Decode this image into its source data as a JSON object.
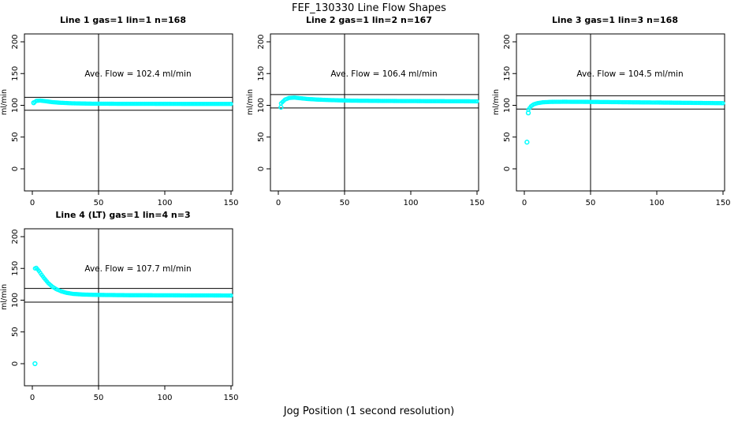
{
  "title": "FEF_130330  Line Flow Shapes",
  "xlabel": "Jog Position (1 second resolution)",
  "chart_data": {
    "type": "scatter",
    "ylabel": "ml/min",
    "x_ticks": [
      0,
      50,
      100,
      150
    ],
    "y_ticks": [
      0,
      50,
      100,
      150,
      200
    ],
    "xlim": [
      0,
      150
    ],
    "ylim": [
      0,
      200
    ],
    "point_color": "#00FFFF",
    "line_color": "#000000",
    "grid": false,
    "panels": [
      {
        "title": "Line 1 gas=1 lin=1 n=168",
        "annotation": "Ave. Flow =  102.4  ml/min",
        "ave_flow": 102.4,
        "ref_lines": [
          112.6,
          92.2
        ],
        "vline_x": 50,
        "curve": [
          [
            1,
            104
          ],
          [
            3,
            107
          ],
          [
            6,
            107.5
          ],
          [
            10,
            106.5
          ],
          [
            15,
            105
          ],
          [
            20,
            104.2
          ],
          [
            30,
            103.2
          ],
          [
            45,
            102.6
          ],
          [
            70,
            102.4
          ],
          [
            110,
            102.3
          ],
          [
            150,
            102.2
          ]
        ],
        "outliers": [
          [
            1,
            104
          ]
        ]
      },
      {
        "title": "Line 2 gas=1 lin=2 n=167",
        "annotation": "Ave. Flow =  106.4  ml/min",
        "ave_flow": 106.4,
        "ref_lines": [
          117.0,
          95.8
        ],
        "vline_x": 50,
        "curve": [
          [
            2,
            103
          ],
          [
            5,
            109
          ],
          [
            8,
            111.5
          ],
          [
            12,
            112.2
          ],
          [
            16,
            111.3
          ],
          [
            22,
            110
          ],
          [
            30,
            109
          ],
          [
            40,
            108.2
          ],
          [
            55,
            107.4
          ],
          [
            80,
            106.9
          ],
          [
            115,
            106.6
          ],
          [
            150,
            106.3
          ]
        ],
        "outliers": [
          [
            2,
            97
          ]
        ]
      },
      {
        "title": "Line 3 gas=1 lin=3 n=168",
        "annotation": "Ave. Flow =  104.5  ml/min",
        "ave_flow": 104.5,
        "ref_lines": [
          115.0,
          94.1
        ],
        "vline_x": 50,
        "curve": [
          [
            3,
            93
          ],
          [
            5,
            98.5
          ],
          [
            7,
            101.5
          ],
          [
            10,
            103.5
          ],
          [
            14,
            104.8
          ],
          [
            20,
            105.4
          ],
          [
            30,
            105.6
          ],
          [
            50,
            105.4
          ],
          [
            80,
            104.8
          ],
          [
            120,
            104
          ],
          [
            150,
            103.4
          ]
        ],
        "outliers": [
          [
            2,
            42
          ],
          [
            3,
            88
          ]
        ]
      },
      {
        "title": "Line 4 (LT) gas=1 lin=4 n=3",
        "annotation": "Ave. Flow =  107.7  ml/min",
        "ave_flow": 107.7,
        "ref_lines": [
          118.5,
          96.9
        ],
        "vline_x": 50,
        "curve": [
          [
            2,
            150
          ],
          [
            3,
            151
          ],
          [
            5,
            146
          ],
          [
            7,
            140
          ],
          [
            9,
            134.5
          ],
          [
            12,
            127
          ],
          [
            15,
            121.5
          ],
          [
            18,
            117.5
          ],
          [
            22,
            113.8
          ],
          [
            26,
            111.5
          ],
          [
            31,
            109.9
          ],
          [
            38,
            108.9
          ],
          [
            50,
            108.3
          ],
          [
            70,
            107.9
          ],
          [
            110,
            107.6
          ],
          [
            150,
            107.4
          ]
        ],
        "outliers": [
          [
            2,
            0
          ]
        ]
      }
    ]
  }
}
